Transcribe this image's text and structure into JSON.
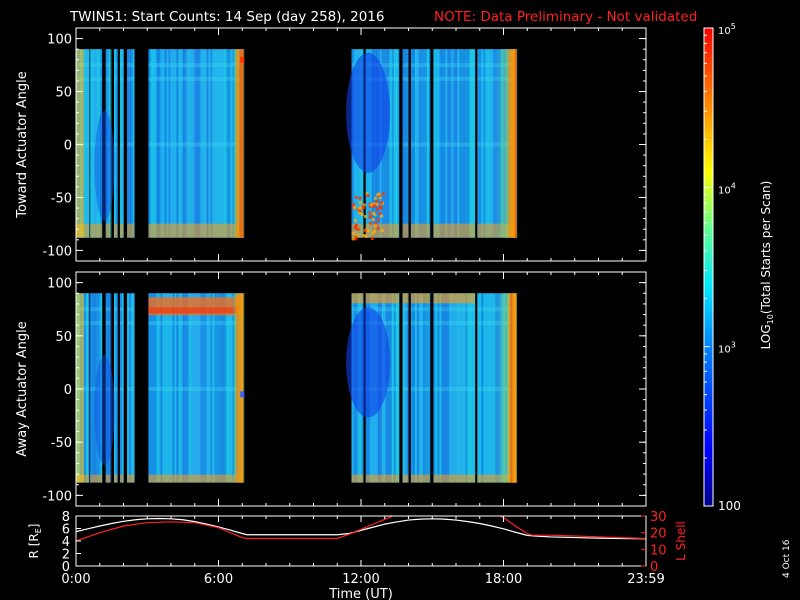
{
  "header": {
    "title": "TWINS1: Start Counts: 14 Sep (day 258), 2016",
    "note": "NOTE: Data Preliminary - Not validated"
  },
  "colors": {
    "background": "#000000",
    "axis": "#ffffff",
    "note": "#ff2020",
    "ephemeris_r": "#ffffff",
    "ephemeris_l": "#ff2020"
  },
  "date_stamp": "4 Oct 16",
  "chart_data": [
    {
      "type": "heatmap",
      "ylabel": "Toward Actuator Angle",
      "ylim": [
        -110,
        110
      ],
      "yticks": [
        "100",
        "50",
        "0",
        "-50",
        "-100"
      ],
      "xlim": [
        0,
        24
      ],
      "x_unit": "hours UT",
      "y_coverage": [
        -88,
        90
      ],
      "data_intervals": [
        [
          0.0,
          0.55
        ],
        [
          0.6,
          1.1
        ],
        [
          1.25,
          1.45
        ],
        [
          1.6,
          1.75
        ],
        [
          1.85,
          2.0
        ],
        [
          2.15,
          2.45
        ],
        [
          3.05,
          7.05
        ],
        [
          11.6,
          12.1
        ],
        [
          12.2,
          13.6
        ],
        [
          13.75,
          14.0
        ],
        [
          14.1,
          14.9
        ],
        [
          15.05,
          16.8
        ],
        [
          16.9,
          18.55
        ]
      ]
    },
    {
      "type": "heatmap",
      "ylabel": "Away Actuator Angle",
      "ylim": [
        -110,
        110
      ],
      "yticks": [
        "100",
        "50",
        "0",
        "-50",
        "-100"
      ],
      "xlim": [
        0,
        24
      ],
      "x_unit": "hours UT",
      "y_coverage": [
        -88,
        90
      ],
      "data_intervals": [
        [
          0.0,
          0.55
        ],
        [
          0.6,
          1.1
        ],
        [
          1.25,
          1.45
        ],
        [
          1.6,
          1.75
        ],
        [
          1.85,
          2.0
        ],
        [
          2.15,
          2.45
        ],
        [
          3.05,
          7.05
        ],
        [
          11.6,
          12.1
        ],
        [
          12.2,
          13.6
        ],
        [
          13.75,
          14.0
        ],
        [
          14.1,
          14.9
        ],
        [
          15.05,
          16.8
        ],
        [
          16.9,
          18.55
        ]
      ]
    },
    {
      "type": "line",
      "xlabel": "Time (UT)",
      "xticks": [
        "0:00",
        "6:00",
        "12:00",
        "18:00",
        "23:59"
      ],
      "xlim": [
        0,
        24
      ],
      "ylabel_left": "R [RE]",
      "ylabel_left_base": "R [R",
      "ylabel_left_sub": "E",
      "ylabel_left_end": "]",
      "yticks_left": [
        "8",
        "6",
        "4",
        "2",
        "0"
      ],
      "ylim_left": [
        0,
        8
      ],
      "ylabel_right": "L Shell",
      "yticks_right": [
        "30",
        "20",
        "10",
        "0"
      ],
      "ylim_right": [
        0,
        30
      ],
      "series": [
        {
          "axis": "left",
          "x": [
            0,
            0.5,
            1,
            1.5,
            2,
            2.5,
            3,
            3.5,
            4,
            4.5,
            5,
            5.5,
            6,
            6.5,
            7,
            7.2,
            8,
            9,
            10,
            11,
            11.5,
            12,
            12.5,
            13,
            13.5,
            14,
            14.5,
            15,
            15.5,
            16,
            16.5,
            17,
            17.5,
            18,
            18.5,
            19,
            19.5,
            20,
            21,
            22,
            23,
            24
          ],
          "y": [
            5.5,
            5.95,
            6.4,
            6.8,
            7.15,
            7.4,
            7.55,
            7.6,
            7.55,
            7.4,
            7.1,
            6.7,
            6.25,
            5.75,
            5.2,
            5.0,
            5.0,
            5.0,
            5.0,
            5.0,
            5.2,
            5.7,
            6.2,
            6.7,
            7.05,
            7.35,
            7.5,
            7.55,
            7.5,
            7.35,
            7.1,
            6.8,
            6.4,
            5.95,
            5.4,
            4.9,
            4.75,
            4.65,
            4.55,
            4.45,
            4.4,
            4.35
          ]
        },
        {
          "axis": "right",
          "x": [
            0,
            1,
            2,
            3,
            4,
            5,
            6,
            7,
            7.2,
            8,
            9,
            10,
            11,
            11.5,
            12,
            12.5,
            13,
            13.5,
            14,
            15,
            16,
            17,
            17.5,
            18,
            18.5,
            19,
            19.2,
            20,
            21,
            22,
            23,
            24
          ],
          "y": [
            15,
            20,
            24,
            26,
            26.5,
            26,
            23,
            17,
            16.5,
            16.5,
            16.5,
            16.5,
            16.5,
            19,
            22,
            25,
            28,
            31,
            34,
            34,
            34,
            34,
            33,
            29,
            24,
            19.5,
            18.5,
            18.5,
            18,
            17.5,
            17,
            16.5
          ]
        }
      ]
    }
  ],
  "colorbar": {
    "label_prefix": "LOG",
    "label_sub": "10",
    "label_suffix": "(Total Starts per Scan)",
    "tick_labels": [
      {
        "base": "10",
        "exp": "5",
        "value": 100000
      },
      {
        "base": "10",
        "exp": "4",
        "value": 10000
      },
      {
        "base": "10",
        "exp": "3",
        "value": 1000
      },
      {
        "plain": "100",
        "value": 100
      }
    ],
    "range": [
      100,
      100000
    ],
    "scale": "log"
  }
}
